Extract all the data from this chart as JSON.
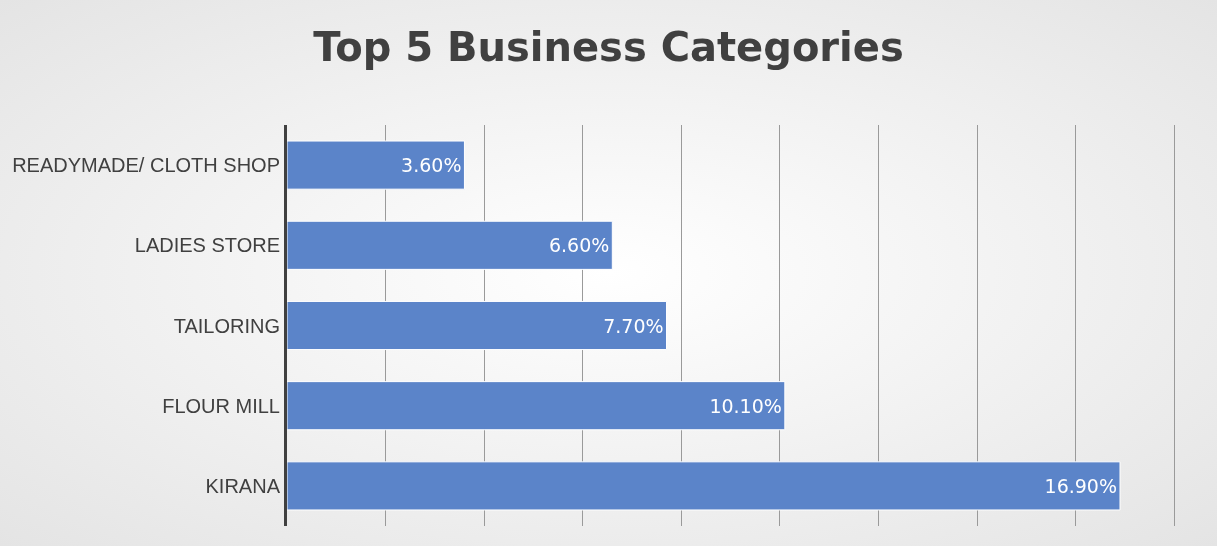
{
  "chart_data": {
    "type": "bar",
    "orientation": "horizontal",
    "title": "Top 5 Business Categories",
    "categories": [
      "READYMADE/ CLOTH SHOP",
      "LADIES STORE",
      "TAILORING",
      "FLOUR MILL",
      "KIRANA"
    ],
    "values": [
      3.6,
      6.6,
      7.7,
      10.1,
      16.9
    ],
    "value_labels": [
      "3.60%",
      "6.60%",
      "7.70%",
      "10.10%",
      "16.90%"
    ],
    "color": "#5b84c9",
    "grid": "x",
    "tick_labels": "y",
    "legend": false
  }
}
